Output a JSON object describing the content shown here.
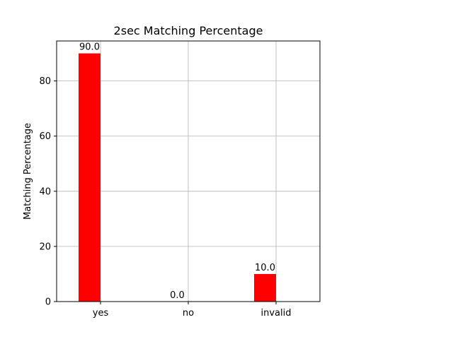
{
  "chart_data": {
    "type": "bar",
    "title": "2sec Matching Percentage",
    "xlabel": "",
    "ylabel": "Matching Percentage",
    "categories": [
      "yes",
      "no",
      "invalid"
    ],
    "series": [
      {
        "values": [
          90.0,
          0.0,
          10.0
        ],
        "value_labels": [
          "90.0",
          "0.0",
          "10.0"
        ],
        "color": "#ff0000"
      }
    ],
    "ylim": [
      0,
      94.5
    ],
    "yticks": [
      0,
      20,
      40,
      60,
      80
    ],
    "ytick_labels": [
      "0",
      "20",
      "40",
      "60",
      "80"
    ],
    "grid": true,
    "grid_color": "#b0b0b0",
    "legend": false
  }
}
